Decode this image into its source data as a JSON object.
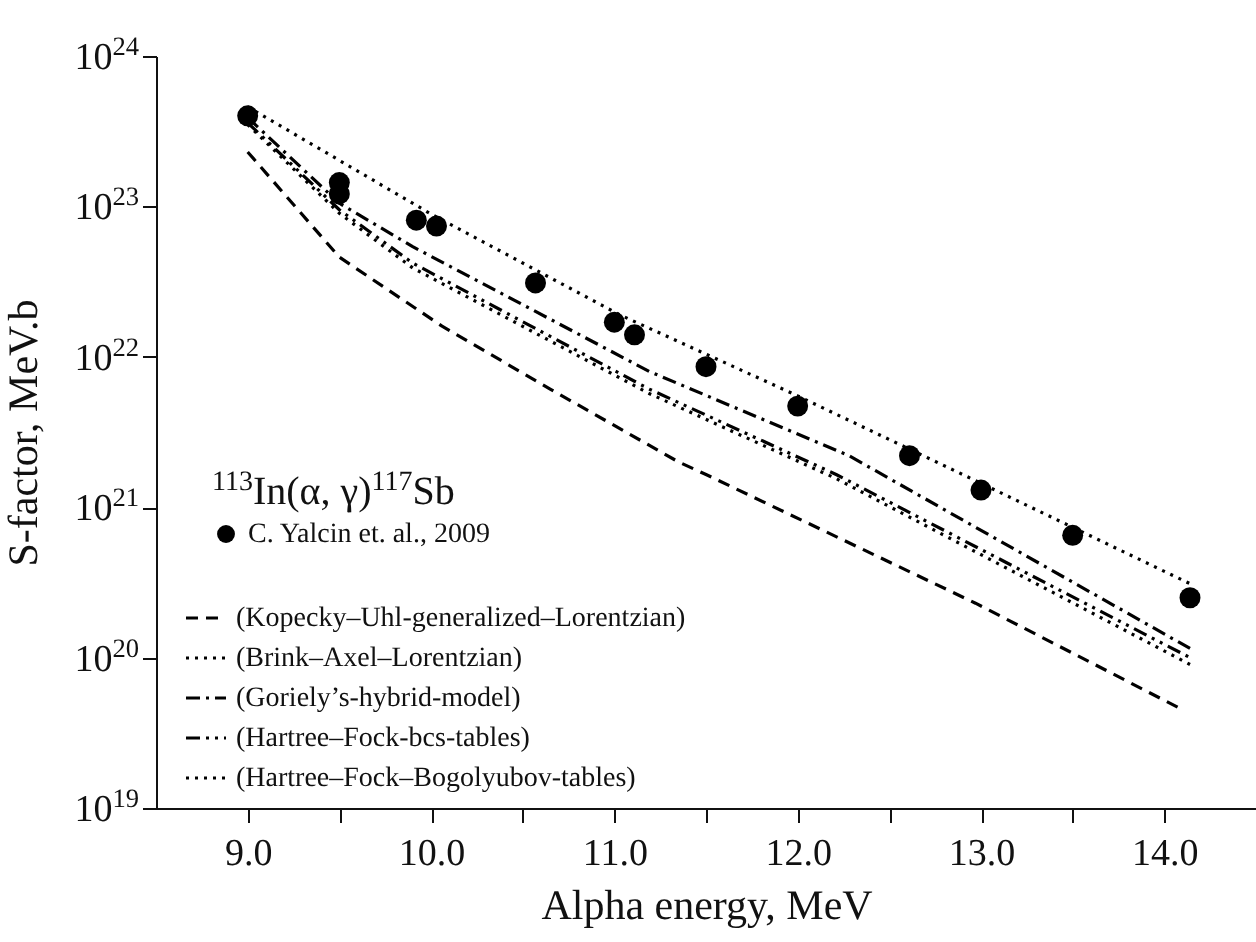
{
  "chart_data": {
    "type": "line",
    "xlabel": "Alpha energy, MeV",
    "ylabel": "S-factor, MeV.b",
    "legend_title": "$^{113}$In(α, γ)$^{117}$Sb",
    "log": "y",
    "legend": "bottom left",
    "grid": false,
    "xlim": [
      8.5,
      14.5
    ],
    "xticks": [
      {
        "value": 9,
        "label": "9.0"
      },
      {
        "value": 9.5,
        "label": null
      },
      {
        "value": 10,
        "label": "10.0"
      },
      {
        "value": 10.5,
        "label": null
      },
      {
        "value": 11,
        "label": "11.0"
      },
      {
        "value": 11.5,
        "label": null
      },
      {
        "value": 12,
        "label": "12.0"
      },
      {
        "value": 12.5,
        "label": null
      },
      {
        "value": 13,
        "label": "13.0"
      },
      {
        "value": 13.5,
        "label": null
      },
      {
        "value": 14,
        "label": "14.0"
      }
    ],
    "ylim": [
      1e+19,
      1e+24
    ],
    "yticks": [
      {
        "value": 1e+19,
        "label": "10$^{19}$"
      },
      {
        "value": 1e+20,
        "label": "10$^{20}$"
      },
      {
        "value": 1e+21,
        "label": "10$^{21}$"
      },
      {
        "value": 1e+22,
        "label": "10$^{22}$"
      },
      {
        "value": 1e+23,
        "label": "10$^{23}$"
      },
      {
        "value": 1e+24,
        "label": "10$^{24}$"
      }
    ],
    "series": [
      {
        "name": "C. Yalcin et. al., 2009",
        "type": "scatter",
        "marker": "circle",
        "color": "#000000",
        "x": [
          9.0,
          9.5,
          9.5,
          9.92,
          10.03,
          10.57,
          11.0,
          11.11,
          11.5,
          12.0,
          12.61,
          13.0,
          13.5,
          14.14
        ],
        "values": [
          4e+23,
          1.44e+23,
          1.21e+23,
          8.1e+22,
          7.4e+22,
          3.1e+22,
          1.7e+22,
          1.4e+22,
          8.6e+21,
          4.7e+21,
          2.2e+21,
          1.3e+21,
          6.5e+20,
          2.5e+20
        ]
      },
      {
        "name": "(Kopecky–Uhl-generalized–Lorentzian)",
        "type": "line",
        "line_style": "dashed",
        "color": "#000000",
        "x": [
          9.0,
          9.5,
          10.06,
          10.65,
          11.35,
          11.5,
          12.97,
          14.1
        ],
        "values": [
          2.3e+23,
          4.6e+22,
          1.6e+22,
          6.1e+21,
          2e+21,
          1.65e+21,
          2.3e+20,
          4.5e+19
        ]
      },
      {
        "name": "(Brink–Axel–Lorentzian)",
        "type": "line",
        "line_style": "dotted",
        "color": "#000000",
        "x": [
          9.0,
          10.0,
          11.03,
          12.0,
          12.9,
          14.14
        ],
        "values": [
          4.6e+23,
          8.9e+22,
          1.9e+22,
          5.5e+21,
          1.65e+21,
          3.1e+20
        ]
      },
      {
        "name": "(Goriely’s-hybrid-model)",
        "type": "line",
        "line_style": "dashdot",
        "color": "#000000",
        "x": [
          9.0,
          9.5,
          9.9,
          11.19,
          12.28,
          14.14
        ],
        "values": [
          3.9e+23,
          1.05e+23,
          5.4e+22,
          8e+21,
          2.2e+21,
          1.15e+20
        ]
      },
      {
        "name": "(Hartree–Fock-bcs-tables)",
        "type": "line",
        "line_style": "dashdotdot",
        "color": "#000000",
        "x": [
          9.0,
          9.5,
          9.9,
          11.19,
          12.21,
          14.14
        ],
        "values": [
          3.6e+23,
          9.5e+22,
          4.2e+22,
          6.1e+21,
          1.65e+21,
          1e+20
        ]
      },
      {
        "name": "(Hartree–Fock–Bogolyubov-tables)",
        "type": "line",
        "line_style": "dotted",
        "color": "#000000",
        "x": [
          9.0,
          9.5,
          9.9,
          11.19,
          12.21,
          14.14
        ],
        "values": [
          3.5e+23,
          9e+22,
          3.9e+22,
          5.7e+21,
          1.55e+21,
          9e+19
        ]
      }
    ]
  }
}
